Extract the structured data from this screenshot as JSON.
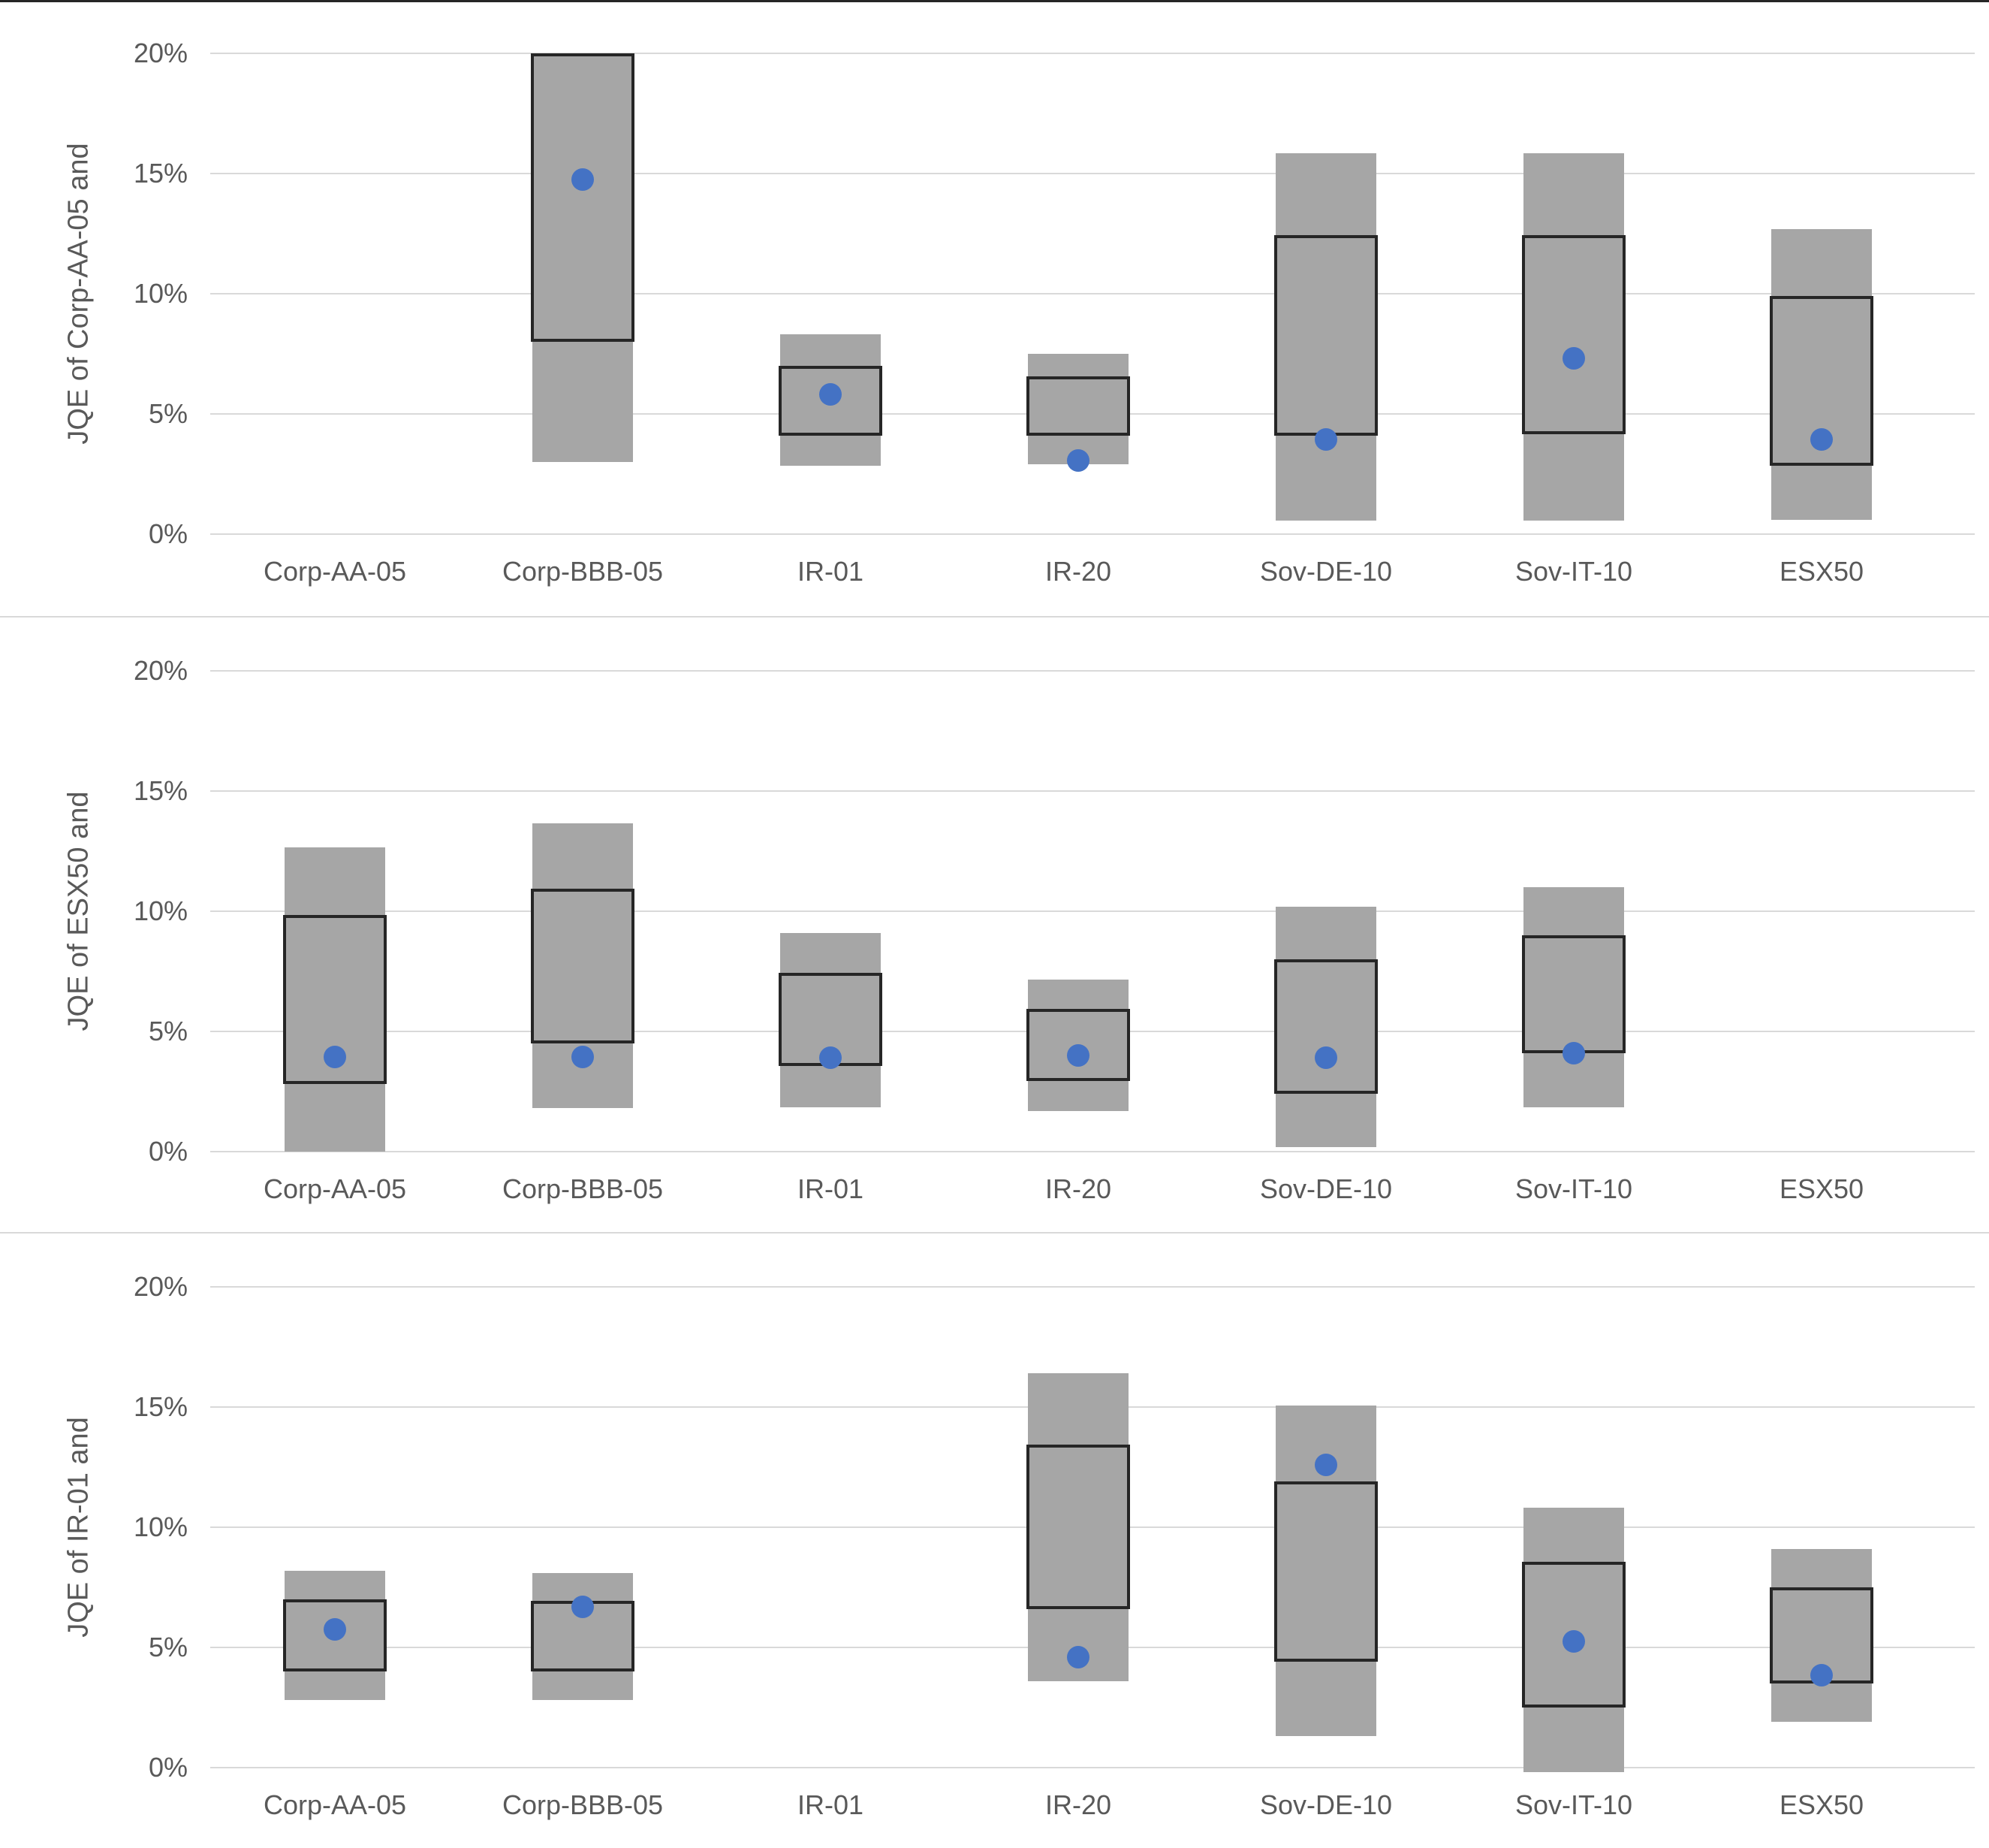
{
  "colors": {
    "bar_fill": "#a6a6a6",
    "box_stroke": "#262626",
    "dot_fill": "#4472c4",
    "gridline": "#d9d9d9",
    "text": "#595959"
  },
  "axis": {
    "tick_labels": [
      "20%",
      "15%",
      "10%",
      "5%",
      "0%"
    ],
    "tick_values": [
      20,
      15,
      10,
      5,
      0
    ],
    "ymin": 0,
    "ymax": 20,
    "grid": "horizontal"
  },
  "chart_data": [
    {
      "type": "box",
      "y_title": "JQE of Corp-AA-05 and",
      "ylabel": "JQE of Corp-AA-05 and",
      "ylim": [
        0,
        20
      ],
      "legend": "none",
      "categories": [
        "Corp-AA-05",
        "Corp-BBB-05",
        "IR-01",
        "IR-20",
        "Sov-DE-10",
        "Sov-IT-10",
        "ESX50"
      ],
      "points": [
        null,
        {
          "whisker": [
            3.0,
            20.0
          ],
          "box": [
            8.0,
            20.0
          ],
          "dot": 14.75
        },
        {
          "whisker": [
            2.85,
            8.3
          ],
          "box": [
            4.1,
            7.0
          ],
          "dot": 5.8
        },
        {
          "whisker": [
            2.9,
            7.5
          ],
          "box": [
            4.1,
            6.55
          ],
          "dot": 3.05
        },
        {
          "whisker": [
            0.55,
            15.85
          ],
          "box": [
            4.1,
            12.45
          ],
          "dot": 3.95
        },
        {
          "whisker": [
            0.55,
            15.85
          ],
          "box": [
            4.15,
            12.45
          ],
          "dot": 7.3
        },
        {
          "whisker": [
            0.6,
            12.7
          ],
          "box": [
            2.85,
            9.9
          ],
          "dot": 3.95
        }
      ]
    },
    {
      "type": "box",
      "y_title": "JQE of ESX50 and",
      "ylabel": "JQE of ESX50 and",
      "ylim": [
        0,
        20
      ],
      "legend": "none",
      "categories": [
        "Corp-AA-05",
        "Corp-BBB-05",
        "IR-01",
        "IR-20",
        "Sov-DE-10",
        "Sov-IT-10",
        "ESX50"
      ],
      "points": [
        {
          "whisker": [
            0.0,
            12.65
          ],
          "box": [
            2.8,
            9.85
          ],
          "dot": 3.95
        },
        {
          "whisker": [
            1.8,
            13.65
          ],
          "box": [
            4.5,
            10.95
          ],
          "dot": 3.95
        },
        {
          "whisker": [
            1.85,
            9.1
          ],
          "box": [
            3.55,
            7.45
          ],
          "dot": 3.9
        },
        {
          "whisker": [
            1.7,
            7.15
          ],
          "box": [
            2.95,
            5.95
          ],
          "dot": 4.0
        },
        {
          "whisker": [
            0.2,
            10.2
          ],
          "box": [
            2.4,
            8.0
          ],
          "dot": 3.9
        },
        {
          "whisker": [
            1.85,
            11.0
          ],
          "box": [
            4.1,
            9.0
          ],
          "dot": 4.1
        },
        null
      ]
    },
    {
      "type": "box",
      "y_title": "JQE of IR-01 and",
      "ylabel": "JQE of IR-01 and",
      "ylim": [
        0,
        20
      ],
      "legend": "none",
      "categories": [
        "Corp-AA-05",
        "Corp-BBB-05",
        "IR-01",
        "IR-20",
        "Sov-DE-10",
        "Sov-IT-10",
        "ESX50"
      ],
      "points": [
        {
          "whisker": [
            2.8,
            8.2
          ],
          "box": [
            4.0,
            7.0
          ],
          "dot": 5.75
        },
        {
          "whisker": [
            2.8,
            8.1
          ],
          "box": [
            4.0,
            6.95
          ],
          "dot": 6.7
        },
        null,
        {
          "whisker": [
            3.6,
            16.4
          ],
          "box": [
            6.6,
            13.45
          ],
          "dot": 4.6
        },
        {
          "whisker": [
            1.3,
            15.05
          ],
          "box": [
            4.4,
            11.9
          ],
          "dot": 12.6
        },
        {
          "whisker": [
            -0.2,
            10.8
          ],
          "box": [
            2.5,
            8.55
          ],
          "dot": 5.25
        },
        {
          "whisker": [
            1.9,
            9.1
          ],
          "box": [
            3.5,
            7.5
          ],
          "dot": 3.85
        }
      ]
    }
  ]
}
